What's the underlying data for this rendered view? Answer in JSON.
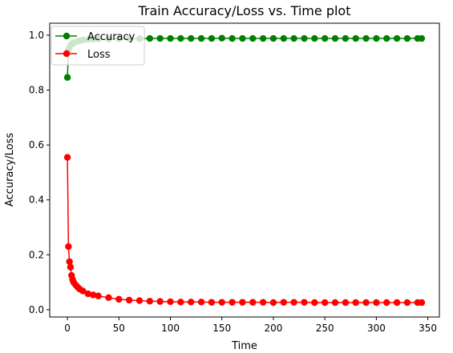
{
  "chart_data": {
    "type": "line",
    "title": "Train Accuracy/Loss vs. Time plot",
    "xlabel": "Time",
    "ylabel": "Accuracy/Loss",
    "xlim": [
      -17.2,
      361.2
    ],
    "ylim": [
      -0.0265,
      1.0435
    ],
    "xticks": [
      0,
      50,
      100,
      150,
      200,
      250,
      300,
      350
    ],
    "yticks": [
      0.0,
      0.2,
      0.4,
      0.6,
      0.8,
      1.0
    ],
    "xtick_labels": [
      "0",
      "50",
      "100",
      "150",
      "200",
      "250",
      "300",
      "350"
    ],
    "ytick_labels": [
      "0.0",
      "0.2",
      "0.4",
      "0.6",
      "0.8",
      "1.0"
    ],
    "grid": false,
    "legend_position": "upper-left",
    "series": [
      {
        "name": "Accuracy",
        "color": "#008000",
        "x": [
          0,
          1,
          2,
          3,
          4,
          5,
          6,
          8,
          10,
          12,
          15,
          20,
          25,
          30,
          40,
          50,
          60,
          70,
          80,
          90,
          100,
          110,
          120,
          130,
          140,
          150,
          160,
          170,
          180,
          190,
          200,
          210,
          220,
          230,
          240,
          250,
          260,
          270,
          280,
          290,
          300,
          310,
          320,
          330,
          340,
          344
        ],
        "y": [
          0.846,
          0.945,
          0.955,
          0.962,
          0.967,
          0.97,
          0.972,
          0.975,
          0.978,
          0.98,
          0.982,
          0.984,
          0.985,
          0.986,
          0.986,
          0.987,
          0.987,
          0.987,
          0.988,
          0.988,
          0.988,
          0.988,
          0.988,
          0.988,
          0.988,
          0.989,
          0.988,
          0.988,
          0.988,
          0.988,
          0.988,
          0.988,
          0.988,
          0.988,
          0.988,
          0.988,
          0.988,
          0.988,
          0.988,
          0.988,
          0.988,
          0.988,
          0.988,
          0.988,
          0.988,
          0.988
        ]
      },
      {
        "name": "Loss",
        "color": "#ff0000",
        "x": [
          0,
          1,
          2,
          3,
          4,
          5,
          6,
          8,
          10,
          12,
          15,
          20,
          25,
          30,
          40,
          50,
          60,
          70,
          80,
          90,
          100,
          110,
          120,
          130,
          140,
          150,
          160,
          170,
          180,
          190,
          200,
          210,
          220,
          230,
          240,
          250,
          260,
          270,
          280,
          290,
          300,
          310,
          320,
          330,
          340,
          344
        ],
        "y": [
          0.555,
          0.23,
          0.175,
          0.155,
          0.125,
          0.11,
          0.1,
          0.09,
          0.082,
          0.075,
          0.068,
          0.058,
          0.054,
          0.05,
          0.044,
          0.038,
          0.035,
          0.033,
          0.031,
          0.03,
          0.029,
          0.028,
          0.028,
          0.028,
          0.027,
          0.027,
          0.027,
          0.027,
          0.027,
          0.027,
          0.026,
          0.027,
          0.027,
          0.027,
          0.026,
          0.026,
          0.026,
          0.026,
          0.026,
          0.026,
          0.026,
          0.026,
          0.026,
          0.026,
          0.026,
          0.026
        ]
      }
    ]
  }
}
